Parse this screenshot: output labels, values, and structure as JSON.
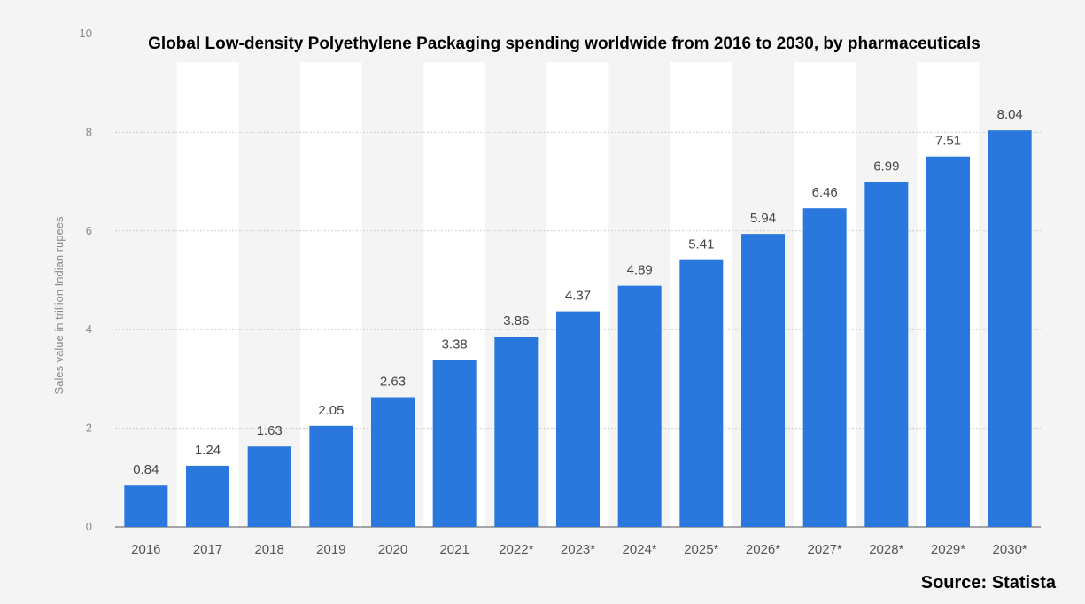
{
  "chart_data": {
    "type": "bar",
    "title": "Global Low-density Polyethylene Packaging  spending worldwide from 2016 to 2030, by pharmaceuticals",
    "xlabel": "",
    "ylabel": "Sales value in trillion Indian rupees",
    "categories": [
      "2016",
      "2017",
      "2018",
      "2019",
      "2020",
      "2021",
      "2022*",
      "2023*",
      "2024*",
      "2025*",
      "2026*",
      "2027*",
      "2028*",
      "2029*",
      "2030*"
    ],
    "values": [
      0.84,
      1.24,
      1.63,
      2.05,
      2.63,
      3.38,
      3.86,
      4.37,
      4.89,
      5.41,
      5.94,
      6.46,
      6.99,
      7.51,
      8.04
    ],
    "value_labels": [
      "0.84",
      "1.24",
      "1.63",
      "2.05",
      "2.63",
      "3.38",
      "3.86",
      "4.37",
      "4.89",
      "5.41",
      "5.94",
      "6.46",
      "6.99",
      "7.51",
      "8.04"
    ],
    "yticks": [
      "0",
      "2",
      "4",
      "6",
      "8",
      "10"
    ],
    "ylim": [
      0,
      10
    ],
    "grid": true,
    "legend": "none",
    "source": "Source: Statista"
  },
  "colors": {
    "bar": "#2a78de",
    "background": "#f4f4f4",
    "band": "#ffffff",
    "grid": "#cccccc"
  }
}
